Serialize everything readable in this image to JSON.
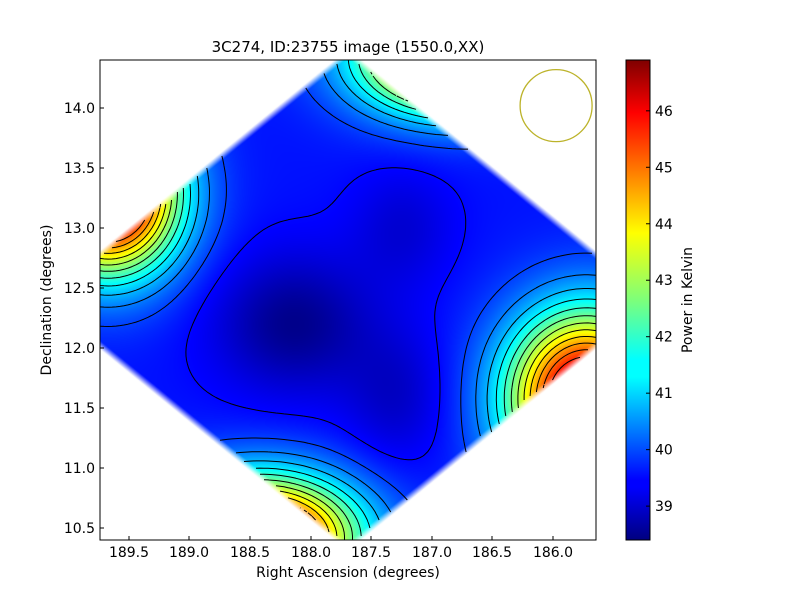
{
  "chart_data": {
    "type": "heatmap",
    "title": "3C274, ID:23755 image (1550.0,XX)",
    "xlabel": "Right Ascension (degrees)",
    "ylabel": "Declination (degrees)",
    "colorbar_label": "Power in Kelvin",
    "colormap": "jet",
    "x_direction": "decreasing to the right",
    "xlim": [
      189.8,
      185.7
    ],
    "ylim": [
      10.4,
      14.4
    ],
    "x_ticks": [
      189.5,
      189.0,
      188.5,
      188.0,
      187.5,
      187.0,
      186.5,
      186.0
    ],
    "x_tick_labels": [
      "189.5",
      "189.0",
      "188.5",
      "188.0",
      "187.5",
      "187.0",
      "186.5",
      "186.0"
    ],
    "y_ticks": [
      10.5,
      11.0,
      11.5,
      12.0,
      12.5,
      13.0,
      13.5,
      14.0
    ],
    "y_tick_labels": [
      "10.5",
      "11.0",
      "11.5",
      "12.0",
      "12.5",
      "13.0",
      "13.5",
      "14.0"
    ],
    "colorbar_range": [
      38.4,
      46.9
    ],
    "colorbar_ticks": [
      39,
      40,
      41,
      42,
      43,
      44,
      45,
      46
    ],
    "colorbar_tick_labels": [
      "39",
      "40",
      "41",
      "42",
      "43",
      "44",
      "45",
      "46"
    ],
    "contours": true,
    "contour_color": "#000000",
    "field_shape": "diamond",
    "field_center": [
      187.75,
      12.4
    ],
    "field_half_width_ra": 2.5,
    "field_half_width_dec": 2.05,
    "background_level": 39.6,
    "components": [
      {
        "ra": 189.73,
        "dec": 13.28,
        "sigma_ra": 0.4,
        "sigma_dec": 0.45,
        "amplitude": 8.0
      },
      {
        "ra": 188.47,
        "dec": 10.42,
        "sigma_ra": 0.55,
        "sigma_dec": 0.35,
        "amplitude": 7.5
      },
      {
        "ra": 186.85,
        "dec": 14.42,
        "sigma_ra": 0.55,
        "sigma_dec": 0.32,
        "amplitude": 7.2
      },
      {
        "ra": 185.78,
        "dec": 11.58,
        "sigma_ra": 0.45,
        "sigma_dec": 0.5,
        "amplitude": 7.5
      },
      {
        "ra": 188.2,
        "dec": 12.2,
        "sigma_ra": 0.45,
        "sigma_dec": 0.4,
        "amplitude": -1.1
      },
      {
        "ra": 187.35,
        "dec": 11.6,
        "sigma_ra": 0.3,
        "sigma_dec": 0.4,
        "amplitude": -0.6
      },
      {
        "ra": 187.3,
        "dec": 13.0,
        "sigma_ra": 0.3,
        "sigma_dec": 0.35,
        "amplitude": -0.5
      }
    ],
    "marker": {
      "shape": "circle",
      "ra": 186.03,
      "dec": 14.02,
      "radius_deg": 0.3,
      "color": "#bcb32a"
    }
  }
}
